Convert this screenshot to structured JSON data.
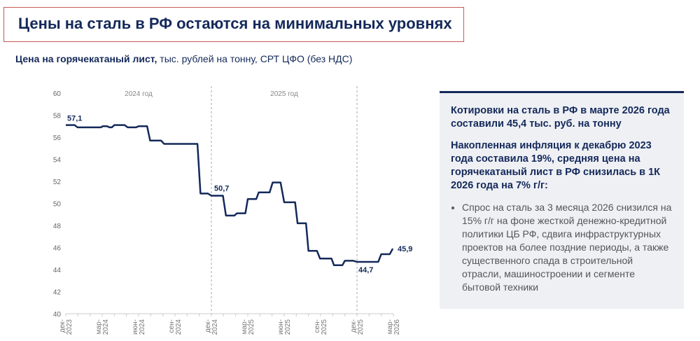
{
  "header": {
    "title": "Цены на сталь в РФ остаются на минимальных уровнях"
  },
  "subtitle": {
    "bold": "Цена на горячекатаный лист,",
    "rest": " тыс. рублей на тонну, СРТ ЦФО (без НДС)"
  },
  "panel": {
    "headline1": "Котировки на сталь в РФ в марте 2026 года составили 45,4 тыс. руб. на тонну",
    "headline2": "Накопленная инфляция к декабрю 2023 года составила 19%, средняя цена на горячекатаный лист в РФ снизилась в 1К 2026 года на 7% г/г:",
    "bullet": "Спрос на сталь за 3 месяца 2026 снизился на 15% г/г на фоне жесткой денежно-кредитной политики ЦБ РФ, сдвига инфраструктурных проектов на более поздние периоды, а также существенного спада в строительной отрасли, машиностроении и сегменте бытовой техники"
  },
  "chart_data": {
    "type": "line",
    "title": "Цена на горячекатаный лист",
    "ylabel": "тыс. рублей на тонну",
    "ylim": [
      40,
      60
    ],
    "yticks": [
      "40",
      "42",
      "44",
      "46",
      "48",
      "50",
      "52",
      "54",
      "56",
      "58",
      "60"
    ],
    "xlim_months": [
      0,
      27
    ],
    "xticks": [
      {
        "m": 0,
        "l1": "дек-",
        "l2": "2023"
      },
      {
        "m": 3,
        "l1": "мар-",
        "l2": "2024"
      },
      {
        "m": 6,
        "l1": "июн-",
        "l2": "2024"
      },
      {
        "m": 9,
        "l1": "сен-",
        "l2": "2024"
      },
      {
        "m": 12,
        "l1": "дек-",
        "l2": "2024"
      },
      {
        "m": 15,
        "l1": "мар-",
        "l2": "2025"
      },
      {
        "m": 18,
        "l1": "июн-",
        "l2": "2025"
      },
      {
        "m": 21,
        "l1": "сен-",
        "l2": "2025"
      },
      {
        "m": 24,
        "l1": "дек-",
        "l2": "2025"
      },
      {
        "m": 27,
        "l1": "мар-",
        "l2": "2026"
      }
    ],
    "year_labels": [
      {
        "m": 6,
        "text": "2024 год"
      },
      {
        "m": 18,
        "text": "2025 год"
      }
    ],
    "dividers": [
      12,
      24
    ],
    "series": [
      {
        "name": "Цена",
        "color": "#14295a",
        "points": [
          [
            0,
            57.1
          ],
          [
            0.73,
            57.1
          ],
          [
            0.96,
            56.9
          ],
          [
            2.9,
            56.9
          ],
          [
            3.05,
            57.0
          ],
          [
            3.4,
            57.0
          ],
          [
            3.6,
            56.9
          ],
          [
            3.8,
            56.9
          ],
          [
            4.0,
            57.1
          ],
          [
            4.85,
            57.1
          ],
          [
            5.1,
            56.9
          ],
          [
            5.8,
            56.9
          ],
          [
            6.0,
            57.0
          ],
          [
            6.7,
            57.0
          ],
          [
            6.95,
            55.7
          ],
          [
            7.85,
            55.7
          ],
          [
            8.1,
            55.4
          ],
          [
            10.85,
            55.4
          ],
          [
            11.1,
            50.9
          ],
          [
            11.7,
            50.9
          ],
          [
            12,
            50.7
          ],
          [
            12.95,
            50.7
          ],
          [
            13.2,
            48.9
          ],
          [
            13.9,
            48.9
          ],
          [
            14.1,
            49.1
          ],
          [
            14.8,
            49.1
          ],
          [
            15.0,
            50.4
          ],
          [
            15.7,
            50.4
          ],
          [
            15.9,
            51.0
          ],
          [
            16.8,
            51.0
          ],
          [
            17.05,
            51.9
          ],
          [
            17.7,
            51.9
          ],
          [
            18.0,
            50.1
          ],
          [
            18.9,
            50.1
          ],
          [
            19.1,
            48.2
          ],
          [
            19.8,
            48.2
          ],
          [
            20.0,
            45.7
          ],
          [
            20.7,
            45.7
          ],
          [
            20.95,
            45.0
          ],
          [
            21.9,
            45.0
          ],
          [
            22.1,
            44.4
          ],
          [
            22.8,
            44.4
          ],
          [
            23.0,
            44.8
          ],
          [
            23.7,
            44.8
          ],
          [
            24,
            44.7
          ],
          [
            25.75,
            44.7
          ],
          [
            26.0,
            45.4
          ],
          [
            26.7,
            45.4
          ],
          [
            26.95,
            45.9
          ]
        ]
      }
    ],
    "annotations": [
      {
        "m": 0,
        "v": 57.1,
        "text": "57,1"
      },
      {
        "m": 12,
        "v": 50.7,
        "text": "50,7"
      },
      {
        "m": 24,
        "v": 44.7,
        "text": "44,7"
      },
      {
        "m": 27,
        "v": 45.9,
        "text": "45,9"
      }
    ]
  }
}
